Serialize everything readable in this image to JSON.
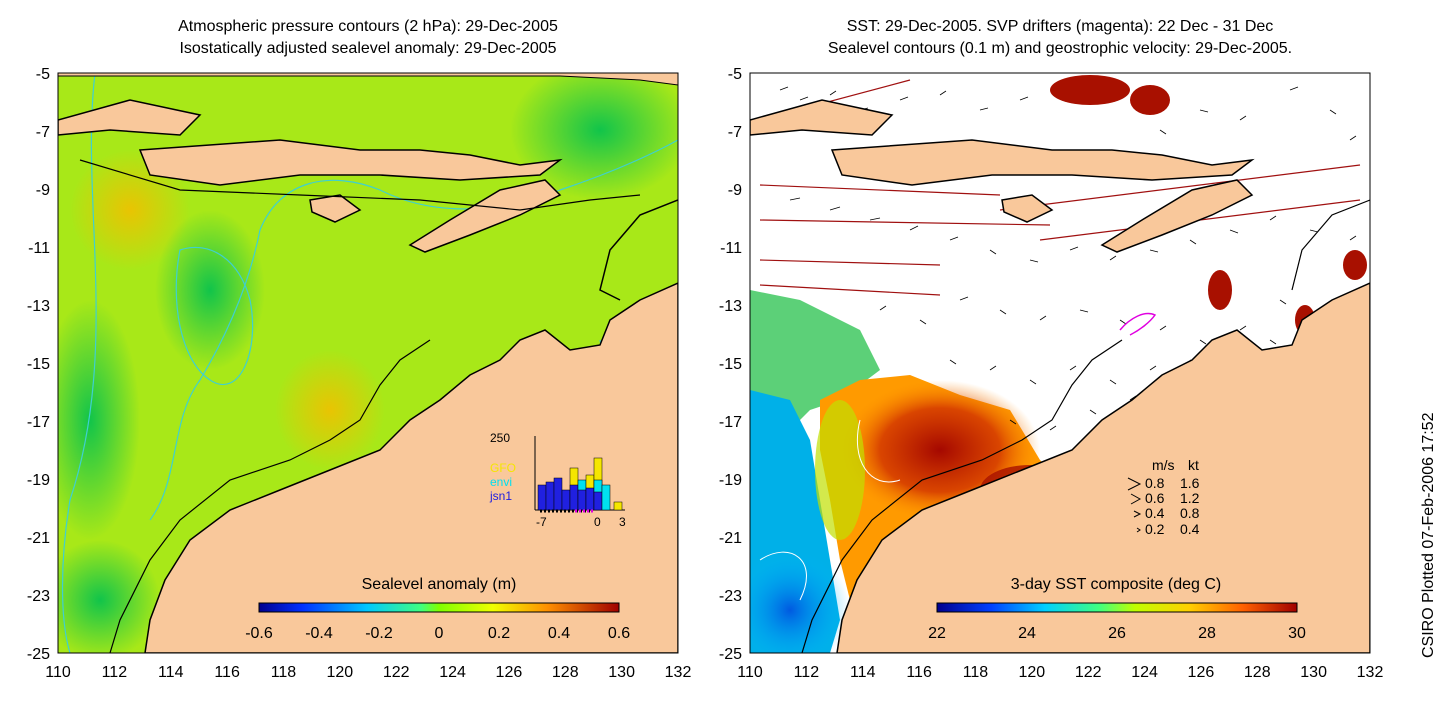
{
  "left_panel": {
    "title_line1": "Atmospheric pressure contours (2 hPa): 29-Dec-2005",
    "title_line2": "Isostatically adjusted sealevel anomaly: 29-Dec-2005",
    "colorbar": {
      "label": "Sealevel anomaly (m)",
      "ticks": [
        "-0.6",
        "-0.4",
        "-0.2",
        "0",
        "0.2",
        "0.4",
        "0.6"
      ]
    },
    "inset": {
      "y_max_label": "250",
      "x_labels": [
        "-7",
        "0",
        "3"
      ],
      "series": [
        {
          "name": "GFO",
          "color": "#f5e600"
        },
        {
          "name": "envi",
          "color": "#00e0f0"
        },
        {
          "name": "jsn1",
          "color": "#2020e0"
        }
      ]
    }
  },
  "right_panel": {
    "title_line1": "SST: 29-Dec-2005. SVP drifters (magenta): 22 Dec - 31 Dec",
    "title_line2": "Sealevel contours (0.1 m) and geostrophic velocity: 29-Dec-2005.",
    "colorbar": {
      "label": "3-day SST composite (deg C)",
      "ticks": [
        "22",
        "24",
        "26",
        "28",
        "30"
      ]
    },
    "velocity_legend": {
      "header_ms": "m/s",
      "header_kt": "kt",
      "rows": [
        {
          "ms": "0.8",
          "kt": "1.6"
        },
        {
          "ms": "0.6",
          "kt": "1.2"
        },
        {
          "ms": "0.4",
          "kt": "0.8"
        },
        {
          "ms": "0.2",
          "kt": "0.4"
        }
      ]
    }
  },
  "axes": {
    "y_ticks": [
      "-5",
      "-7",
      "-9",
      "-11",
      "-13",
      "-15",
      "-17",
      "-19",
      "-21",
      "-23",
      "-25"
    ],
    "x_ticks": [
      "110",
      "112",
      "114",
      "116",
      "118",
      "120",
      "122",
      "124",
      "126",
      "128",
      "130",
      "132"
    ]
  },
  "footer_note": "CSIRO Plotted 07-Feb-2006 17:52",
  "colors": {
    "land": "#f9c89b",
    "coast": "#000000",
    "pressure_contour": "#3fd0d0",
    "drifter": "#e000e0"
  }
}
